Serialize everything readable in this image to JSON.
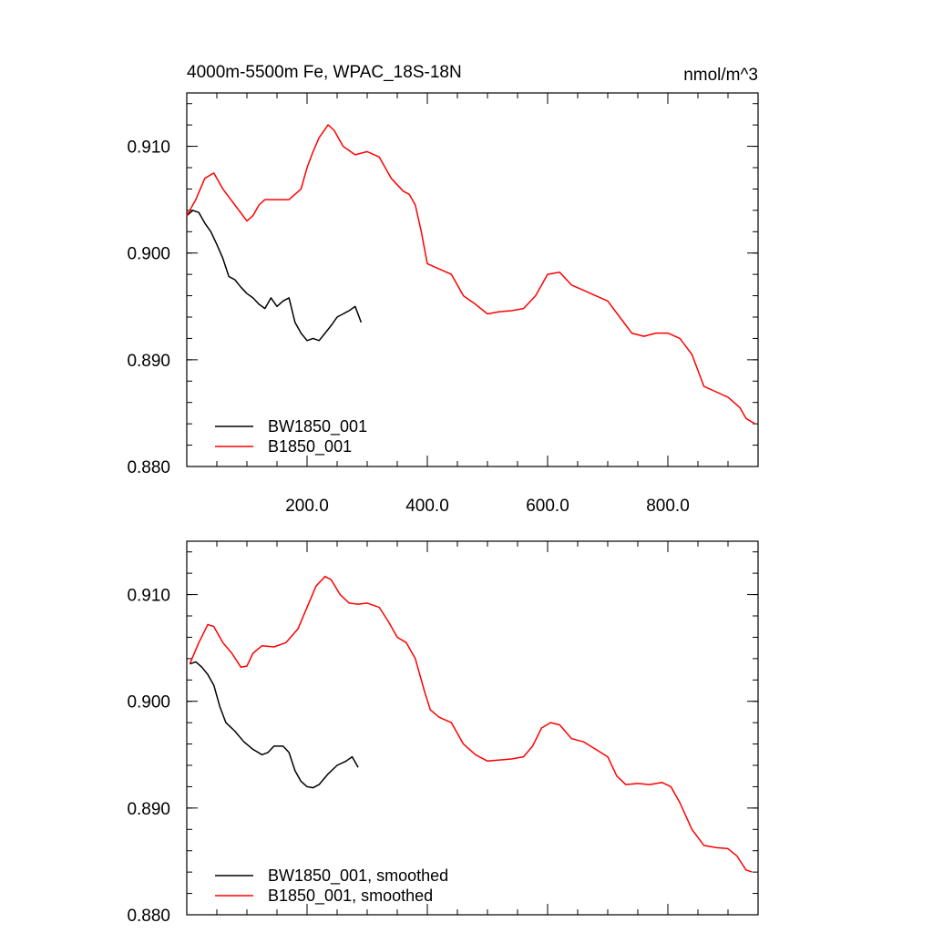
{
  "chart_data": [
    {
      "type": "line",
      "title": "4000m-5500m Fe, WPAC_18S-18N",
      "units": "nmol/m^3",
      "xlim": [
        0,
        950
      ],
      "ylim": [
        0.88,
        0.915
      ],
      "x_ticks": [
        200,
        400,
        600,
        800
      ],
      "x_tick_labels": [
        "200.0",
        "400.0",
        "600.0",
        "800.0"
      ],
      "y_ticks": [
        0.88,
        0.89,
        0.9,
        0.91
      ],
      "y_tick_labels": [
        "0.880",
        "0.890",
        "0.900",
        "0.910"
      ],
      "legend_position": "bottom-left",
      "series": [
        {
          "name": "BW1850_001",
          "color": "#000000",
          "points": [
            [
              0,
              0.9035
            ],
            [
              10,
              0.904
            ],
            [
              20,
              0.9038
            ],
            [
              30,
              0.9028
            ],
            [
              40,
              0.902
            ],
            [
              50,
              0.9008
            ],
            [
              60,
              0.8995
            ],
            [
              70,
              0.8978
            ],
            [
              80,
              0.8975
            ],
            [
              90,
              0.8968
            ],
            [
              100,
              0.8962
            ],
            [
              110,
              0.8958
            ],
            [
              120,
              0.8952
            ],
            [
              130,
              0.8948
            ],
            [
              140,
              0.8958
            ],
            [
              150,
              0.895
            ],
            [
              160,
              0.8955
            ],
            [
              170,
              0.8958
            ],
            [
              180,
              0.8935
            ],
            [
              190,
              0.8925
            ],
            [
              200,
              0.8918
            ],
            [
              210,
              0.892
            ],
            [
              220,
              0.8918
            ],
            [
              230,
              0.8925
            ],
            [
              240,
              0.8932
            ],
            [
              250,
              0.894
            ],
            [
              260,
              0.8943
            ],
            [
              270,
              0.8946
            ],
            [
              280,
              0.895
            ],
            [
              290,
              0.8935
            ]
          ]
        },
        {
          "name": "B1850_001",
          "color": "#ff0000",
          "points": [
            [
              0,
              0.9035
            ],
            [
              15,
              0.905
            ],
            [
              30,
              0.907
            ],
            [
              45,
              0.9075
            ],
            [
              60,
              0.906
            ],
            [
              80,
              0.9045
            ],
            [
              100,
              0.903
            ],
            [
              110,
              0.9035
            ],
            [
              120,
              0.9045
            ],
            [
              130,
              0.905
            ],
            [
              150,
              0.905
            ],
            [
              170,
              0.905
            ],
            [
              190,
              0.906
            ],
            [
              200,
              0.908
            ],
            [
              210,
              0.9095
            ],
            [
              220,
              0.9108
            ],
            [
              235,
              0.912
            ],
            [
              245,
              0.9115
            ],
            [
              260,
              0.91
            ],
            [
              280,
              0.9092
            ],
            [
              300,
              0.9095
            ],
            [
              320,
              0.909
            ],
            [
              340,
              0.907
            ],
            [
              360,
              0.9058
            ],
            [
              370,
              0.9055
            ],
            [
              380,
              0.9045
            ],
            [
              390,
              0.902
            ],
            [
              400,
              0.899
            ],
            [
              420,
              0.8985
            ],
            [
              440,
              0.898
            ],
            [
              460,
              0.896
            ],
            [
              480,
              0.8952
            ],
            [
              500,
              0.8943
            ],
            [
              520,
              0.8945
            ],
            [
              540,
              0.8946
            ],
            [
              560,
              0.8948
            ],
            [
              580,
              0.896
            ],
            [
              600,
              0.898
            ],
            [
              620,
              0.8982
            ],
            [
              640,
              0.897
            ],
            [
              660,
              0.8965
            ],
            [
              680,
              0.896
            ],
            [
              700,
              0.8955
            ],
            [
              720,
              0.894
            ],
            [
              740,
              0.8925
            ],
            [
              760,
              0.8922
            ],
            [
              780,
              0.8925
            ],
            [
              800,
              0.8925
            ],
            [
              820,
              0.892
            ],
            [
              840,
              0.8905
            ],
            [
              860,
              0.8875
            ],
            [
              880,
              0.887
            ],
            [
              900,
              0.8865
            ],
            [
              910,
              0.886
            ],
            [
              920,
              0.8855
            ],
            [
              930,
              0.8845
            ],
            [
              945,
              0.884
            ]
          ]
        }
      ]
    },
    {
      "type": "line",
      "title": "",
      "units": "",
      "xlim": [
        0,
        950
      ],
      "ylim": [
        0.88,
        0.915
      ],
      "x_ticks": [
        200,
        400,
        600,
        800
      ],
      "x_tick_labels": [],
      "y_ticks": [
        0.88,
        0.89,
        0.9,
        0.91
      ],
      "y_tick_labels": [
        "0.880",
        "0.890",
        "0.900",
        "0.910"
      ],
      "legend_position": "bottom-left",
      "series": [
        {
          "name": "BW1850_001, smoothed",
          "color": "#000000",
          "points": [
            [
              5,
              0.9035
            ],
            [
              15,
              0.9037
            ],
            [
              25,
              0.9032
            ],
            [
              35,
              0.9025
            ],
            [
              45,
              0.9015
            ],
            [
              55,
              0.8995
            ],
            [
              65,
              0.898
            ],
            [
              80,
              0.8972
            ],
            [
              95,
              0.8962
            ],
            [
              110,
              0.8955
            ],
            [
              125,
              0.895
            ],
            [
              135,
              0.8952
            ],
            [
              145,
              0.8958
            ],
            [
              160,
              0.8958
            ],
            [
              170,
              0.8952
            ],
            [
              180,
              0.8935
            ],
            [
              190,
              0.8925
            ],
            [
              200,
              0.892
            ],
            [
              210,
              0.8919
            ],
            [
              220,
              0.8922
            ],
            [
              235,
              0.8932
            ],
            [
              250,
              0.894
            ],
            [
              265,
              0.8944
            ],
            [
              275,
              0.8948
            ],
            [
              285,
              0.8938
            ]
          ]
        },
        {
          "name": "B1850_001, smoothed",
          "color": "#ff0000",
          "points": [
            [
              5,
              0.9035
            ],
            [
              20,
              0.9055
            ],
            [
              35,
              0.9072
            ],
            [
              45,
              0.907
            ],
            [
              60,
              0.9055
            ],
            [
              75,
              0.9045
            ],
            [
              90,
              0.9032
            ],
            [
              100,
              0.9033
            ],
            [
              110,
              0.9045
            ],
            [
              125,
              0.9052
            ],
            [
              145,
              0.9051
            ],
            [
              165,
              0.9055
            ],
            [
              185,
              0.9068
            ],
            [
              200,
              0.9088
            ],
            [
              215,
              0.9108
            ],
            [
              230,
              0.9117
            ],
            [
              240,
              0.9114
            ],
            [
              255,
              0.91
            ],
            [
              270,
              0.9092
            ],
            [
              285,
              0.9091
            ],
            [
              300,
              0.9092
            ],
            [
              320,
              0.9088
            ],
            [
              335,
              0.9075
            ],
            [
              350,
              0.906
            ],
            [
              365,
              0.9055
            ],
            [
              380,
              0.904
            ],
            [
              395,
              0.901
            ],
            [
              405,
              0.8992
            ],
            [
              420,
              0.8985
            ],
            [
              440,
              0.898
            ],
            [
              460,
              0.896
            ],
            [
              480,
              0.895
            ],
            [
              500,
              0.8944
            ],
            [
              520,
              0.8945
            ],
            [
              540,
              0.8946
            ],
            [
              560,
              0.8948
            ],
            [
              575,
              0.8958
            ],
            [
              590,
              0.8975
            ],
            [
              605,
              0.898
            ],
            [
              620,
              0.8978
            ],
            [
              640,
              0.8965
            ],
            [
              660,
              0.8962
            ],
            [
              680,
              0.8955
            ],
            [
              700,
              0.8948
            ],
            [
              715,
              0.893
            ],
            [
              730,
              0.8922
            ],
            [
              750,
              0.8923
            ],
            [
              770,
              0.8922
            ],
            [
              790,
              0.8924
            ],
            [
              805,
              0.892
            ],
            [
              820,
              0.8905
            ],
            [
              840,
              0.888
            ],
            [
              860,
              0.8865
            ],
            [
              880,
              0.8863
            ],
            [
              900,
              0.8862
            ],
            [
              915,
              0.8855
            ],
            [
              930,
              0.8842
            ],
            [
              940,
              0.884
            ]
          ]
        }
      ]
    }
  ]
}
